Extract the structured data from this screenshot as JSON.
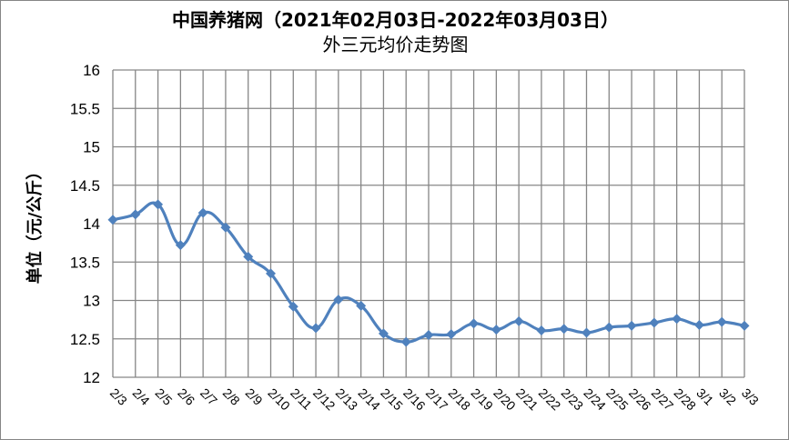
{
  "chart_data": {
    "type": "line",
    "title": "中国养猪网（2021年02月03日-2022年03月03日）",
    "subtitle": "外三元均价走势图",
    "xlabel": "",
    "ylabel": "单位（元/公斤）",
    "ylim": [
      12,
      16
    ],
    "yticks": [
      "12",
      "12.5",
      "13",
      "13.5",
      "14",
      "14.5",
      "15",
      "15.5",
      "16"
    ],
    "grid": true,
    "legend": "none",
    "line_color": "#4F81BD",
    "marker": "diamond",
    "smooth": true,
    "categories": [
      "2/3",
      "2/4",
      "2/5",
      "2/6",
      "2/7",
      "2/8",
      "2/9",
      "2/10",
      "2/11",
      "2/12",
      "2/13",
      "2/14",
      "2/15",
      "2/16",
      "2/17",
      "2/18",
      "2/19",
      "2/20",
      "2/21",
      "2/22",
      "2/23",
      "2/24",
      "2/25",
      "2/26",
      "2/27",
      "2/28",
      "3/1",
      "3/2",
      "3/3"
    ],
    "series": [
      {
        "name": "外三元均价",
        "values": [
          14.05,
          14.12,
          14.25,
          13.72,
          14.14,
          13.95,
          13.57,
          13.35,
          12.92,
          12.64,
          13.01,
          12.93,
          12.57,
          12.46,
          12.55,
          12.56,
          12.7,
          12.62,
          12.73,
          12.61,
          12.63,
          12.58,
          12.65,
          12.67,
          12.71,
          12.76,
          12.68,
          12.72,
          12.67
        ]
      }
    ]
  }
}
